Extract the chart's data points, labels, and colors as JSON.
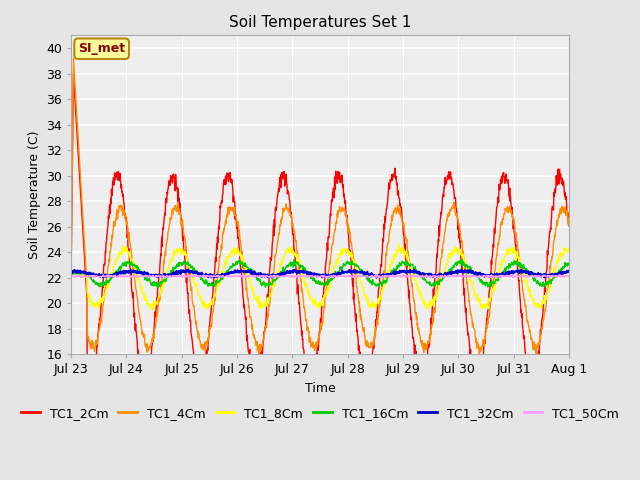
{
  "title": "Soil Temperatures Set 1",
  "xlabel": "Time",
  "ylabel": "Soil Temperature (C)",
  "ylim": [
    16,
    41
  ],
  "yticks": [
    16,
    18,
    20,
    22,
    24,
    26,
    28,
    30,
    32,
    34,
    36,
    38,
    40
  ],
  "annotation_text": "SI_met",
  "series": [
    {
      "label": "TC1_2Cm",
      "color": "#ff0000",
      "linewidth": 1.0
    },
    {
      "label": "TC1_4Cm",
      "color": "#ff8c00",
      "linewidth": 1.0
    },
    {
      "label": "TC1_8Cm",
      "color": "#ffff00",
      "linewidth": 1.0
    },
    {
      "label": "TC1_16Cm",
      "color": "#00cc00",
      "linewidth": 1.0
    },
    {
      "label": "TC1_32Cm",
      "color": "#0000cc",
      "linewidth": 1.5
    },
    {
      "label": "TC1_50Cm",
      "color": "#ff99ff",
      "linewidth": 1.0
    }
  ],
  "x_tick_labels": [
    "Jul 23",
    "Jul 24",
    "Jul 25",
    "Jul 26",
    "Jul 27",
    "Jul 28",
    "Jul 29",
    "Jul 30",
    "Jul 31",
    "Aug 1"
  ],
  "background_color": "#e5e5e5",
  "plot_background": "#eeeeee",
  "grid_color": "#ffffff",
  "title_fontsize": 11,
  "axis_fontsize": 9,
  "legend_fontsize": 9
}
